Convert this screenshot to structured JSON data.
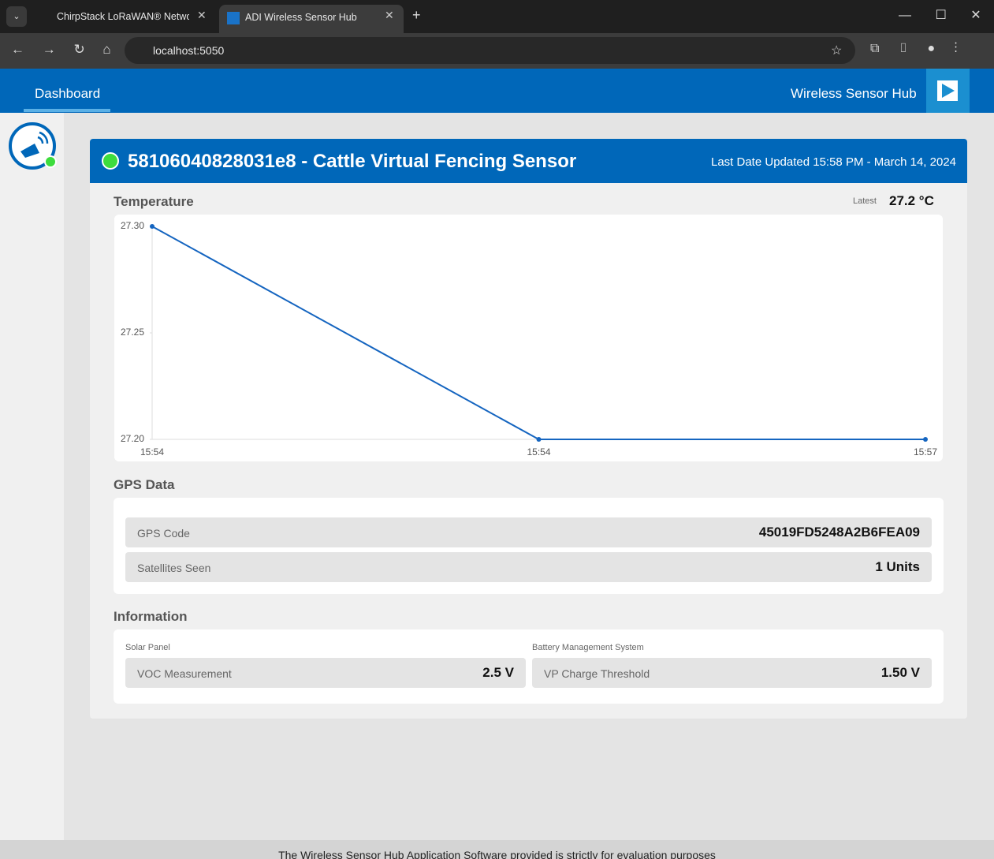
{
  "browser": {
    "tabs": [
      "ChirpStack LoRaWAN® Networ",
      "ADI Wireless Sensor Hub"
    ],
    "url": "localhost:5050"
  },
  "nav": {
    "tab": "Dashboard",
    "brand": "Wireless Sensor Hub"
  },
  "device": {
    "title": "58106040828031e8 - Cattle Virtual Fencing Sensor",
    "updated": "Last Date Updated 15:58 PM - March 14, 2024"
  },
  "temperature": {
    "heading": "Temperature",
    "latest_label": "Latest",
    "latest_value": "27.2 °C"
  },
  "chart_data": {
    "type": "line",
    "categories": [
      "15:54",
      "15:54",
      "15:57"
    ],
    "series": [
      {
        "name": "Temperature",
        "color": "#1565c0",
        "values": [
          27.3,
          27.2,
          27.2
        ]
      }
    ],
    "ylim": [
      27.2,
      27.3
    ],
    "yticks": [
      {
        "value": 27.2,
        "label": "27.20"
      },
      {
        "value": 27.25,
        "label": "27.25"
      },
      {
        "value": 27.3,
        "label": "27.30"
      }
    ]
  },
  "gps": {
    "heading": "GPS Data",
    "rows": [
      {
        "label": "GPS Code",
        "value": "45019FD5248A2B6FEA09"
      },
      {
        "label": "Satellites Seen",
        "value": "1 Units"
      }
    ]
  },
  "information": {
    "heading": "Information",
    "groups": [
      {
        "title": "Solar Panel",
        "label": "VOC Measurement",
        "value": "2.5 V"
      },
      {
        "title": "Battery Management System",
        "label": "VP Charge Threshold",
        "value": "1.50 V"
      }
    ]
  },
  "footer": "The Wireless Sensor Hub Application Software provided is strictly for evaluation purposes"
}
